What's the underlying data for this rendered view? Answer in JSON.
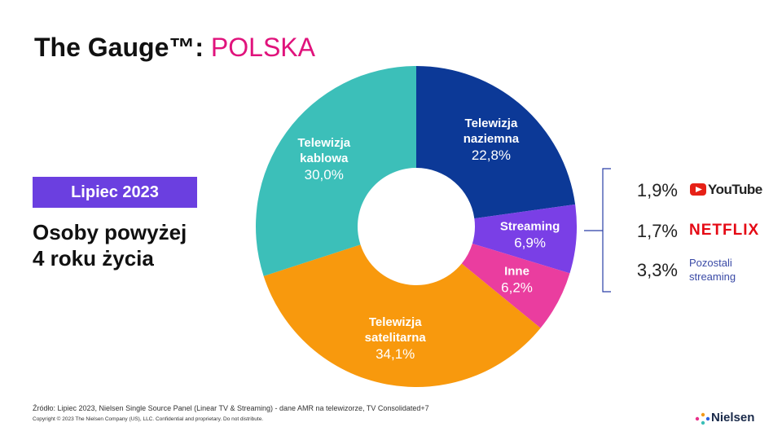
{
  "header": {
    "title": "The Gauge™:",
    "title_highlight": "POLSKA"
  },
  "period": "Lipiec 2023",
  "subtitle_lines": [
    "Osoby powyżej",
    "4 roku życia"
  ],
  "chart_data": {
    "type": "donut",
    "categories": [
      "Telewizja naziemna",
      "Streaming",
      "Inne",
      "Telewizja satelitarna",
      "Telewizja kablowa"
    ],
    "values": [
      22.8,
      6.9,
      6.2,
      34.1,
      30.0
    ],
    "value_labels": [
      "22,8%",
      "6,9%",
      "6,2%",
      "34,1%",
      "30,0%"
    ],
    "colors": [
      "#0c3997",
      "#7a3fe6",
      "#ea3d9f",
      "#f8990d",
      "#3cbfb9"
    ]
  },
  "streaming_breakdown": [
    {
      "value_label": "1,9%",
      "name": "YouTube"
    },
    {
      "value_label": "1,7%",
      "name": "NETFLIX"
    },
    {
      "value_label": "3,3%",
      "name": "Pozostali streaming"
    }
  ],
  "footer": {
    "source": "Źródło: Lipiec 2023, Nielsen Single Source Panel (Linear TV & Streaming) - dane AMR na telewizorze, TV Consolidated+7",
    "copyright": "Copyright © 2023 The Nielsen Company (US), LLC. Confidential and proprietary. Do not distribute.",
    "brand": "Nielsen"
  }
}
